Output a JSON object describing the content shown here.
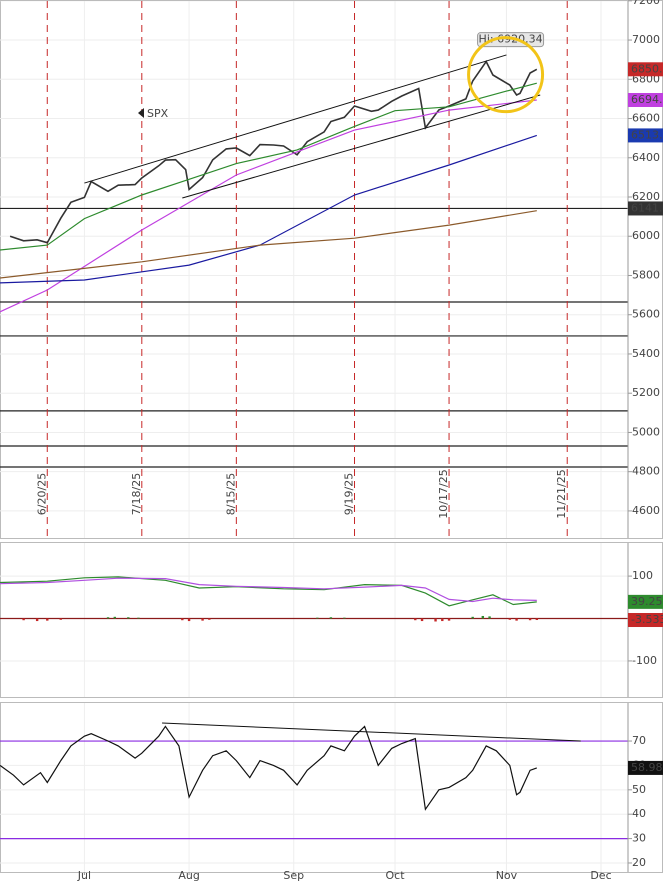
{
  "chart_data": [
    {
      "type": "line",
      "xlim": [
        "2025-06-06",
        "2025-12-09"
      ],
      "ylim": [
        4462,
        7199
      ],
      "yticks": [
        4600,
        4800,
        5000,
        5200,
        5400,
        5600,
        5800,
        6000,
        6200,
        6400,
        6600,
        6800,
        7000,
        7200
      ],
      "grid": true,
      "series": [
        {
          "name": "SPX",
          "color": "#333333",
          "x": [
            "2025-06-09",
            "2025-06-13",
            "2025-06-17",
            "2025-06-20",
            "2025-06-24",
            "2025-06-27",
            "2025-07-01",
            "2025-07-03",
            "2025-07-08",
            "2025-07-11",
            "2025-07-16",
            "2025-07-18",
            "2025-07-23",
            "2025-07-25",
            "2025-07-28",
            "2025-07-31",
            "2025-08-01",
            "2025-08-05",
            "2025-08-08",
            "2025-08-12",
            "2025-08-15",
            "2025-08-19",
            "2025-08-22",
            "2025-08-26",
            "2025-08-29",
            "2025-09-02",
            "2025-09-05",
            "2025-09-10",
            "2025-09-12",
            "2025-09-16",
            "2025-09-19",
            "2025-09-24",
            "2025-09-26",
            "2025-09-30",
            "2025-10-03",
            "2025-10-08",
            "2025-10-10",
            "2025-10-14",
            "2025-10-17",
            "2025-10-22",
            "2025-10-24",
            "2025-10-28",
            "2025-10-30",
            "2025-11-04",
            "2025-11-06",
            "2025-11-07",
            "2025-11-10",
            "2025-11-12"
          ],
          "values": [
            6000,
            5977,
            5982,
            5967,
            6092,
            6173,
            6198,
            6279,
            6229,
            6260,
            6263,
            6297,
            6359,
            6388,
            6390,
            6339,
            6238,
            6299,
            6389,
            6445,
            6450,
            6411,
            6467,
            6465,
            6460,
            6415,
            6482,
            6532,
            6585,
            6606,
            6664,
            6637,
            6643,
            6688,
            6715,
            6753,
            6552,
            6644,
            6664,
            6700,
            6791,
            6890,
            6822,
            6771,
            6720,
            6728,
            6832,
            6850.9
          ]
        },
        {
          "color": "#2e8b2e",
          "x": [
            "2025-06-06",
            "2025-06-20",
            "2025-07-01",
            "2025-07-18",
            "2025-08-01",
            "2025-08-15",
            "2025-09-02",
            "2025-09-19",
            "2025-10-01",
            "2025-10-17",
            "2025-11-03",
            "2025-11-12"
          ],
          "values": [
            5930,
            5955,
            6090,
            6210,
            6290,
            6370,
            6440,
            6560,
            6640,
            6660,
            6740,
            6780
          ]
        },
        {
          "color": "#c040e0",
          "x": [
            "2025-06-06",
            "2025-06-20",
            "2025-07-18",
            "2025-08-15",
            "2025-09-19",
            "2025-10-17",
            "2025-11-12"
          ],
          "values": [
            5615,
            5726,
            6032,
            6312,
            6541,
            6643,
            6694.4
          ]
        },
        {
          "color": "#1a1aa0",
          "x": [
            "2025-06-06",
            "2025-07-01",
            "2025-08-01",
            "2025-08-22",
            "2025-09-19",
            "2025-10-17",
            "2025-11-12"
          ],
          "values": [
            5762,
            5777,
            5853,
            5955,
            6210,
            6363,
            6513.9
          ]
        },
        {
          "color": "#8b5a2b",
          "x": [
            "2025-06-06",
            "2025-07-18",
            "2025-08-22",
            "2025-09-19",
            "2025-10-17",
            "2025-11-12"
          ],
          "values": [
            5787,
            5870,
            5955,
            5990,
            6057,
            6130
          ]
        }
      ],
      "hlines": [
        6141.6,
        5665,
        5492,
        5110,
        4931,
        4824
      ],
      "hline_color": "#222222",
      "trendlines": [
        {
          "x": [
            "2025-07-01",
            "2025-11-03"
          ],
          "values": [
            6271,
            6924
          ]
        },
        {
          "x": [
            "2025-07-30",
            "2025-11-13"
          ],
          "values": [
            6195,
            6720
          ]
        }
      ],
      "vlines": [
        {
          "value": "2025-06-20",
          "label": "6/20/25"
        },
        {
          "value": "2025-07-18",
          "label": "7/18/25"
        },
        {
          "value": "2025-08-15",
          "label": "8/15/25"
        },
        {
          "value": "2025-09-19",
          "label": "9/19/25"
        },
        {
          "value": "2025-10-17",
          "label": "10/17/25"
        },
        {
          "value": "2025-11-21",
          "label": "11/21/25"
        }
      ],
      "vline_color": "#c62828",
      "hi": {
        "x": "2025-10-29",
        "value": 6920.34,
        "label": "Hi: 6920.34"
      },
      "tags": [
        {
          "value": 6850.9,
          "color": "#c62828"
        },
        {
          "value": 6694.4,
          "color": "#c040e0"
        },
        {
          "value": 6513.9,
          "color": "#1a3ab0"
        },
        {
          "value": 6141.6,
          "color": "#333333"
        }
      ]
    },
    {
      "type": "line",
      "xlim": [
        "2025-06-06",
        "2025-12-09"
      ],
      "ylim": [
        -185,
        178
      ],
      "yticks": [
        -100,
        100
      ],
      "grid": true,
      "series": [
        {
          "color": "#2e8b2e",
          "x": [
            "2025-06-06",
            "2025-06-20",
            "2025-07-01",
            "2025-07-11",
            "2025-07-25",
            "2025-08-04",
            "2025-08-15",
            "2025-08-29",
            "2025-09-10",
            "2025-09-22",
            "2025-10-03",
            "2025-10-10",
            "2025-10-17",
            "2025-10-24",
            "2025-10-30",
            "2025-11-05",
            "2025-11-12"
          ],
          "values": [
            85,
            88,
            96,
            98,
            90,
            72,
            75,
            70,
            68,
            80,
            78,
            60,
            30,
            44,
            56,
            33,
            39.25
          ]
        },
        {
          "color": "#b050e0",
          "x": [
            "2025-06-06",
            "2025-06-20",
            "2025-07-01",
            "2025-07-11",
            "2025-07-25",
            "2025-08-04",
            "2025-08-15",
            "2025-08-29",
            "2025-09-10",
            "2025-09-22",
            "2025-10-03",
            "2025-10-10",
            "2025-10-17",
            "2025-10-24",
            "2025-10-30",
            "2025-11-05",
            "2025-11-12"
          ],
          "values": [
            82,
            85,
            90,
            95,
            94,
            80,
            76,
            73,
            70,
            74,
            78,
            72,
            45,
            40,
            48,
            44,
            42.78
          ]
        },
        {
          "style": "histogram",
          "color": "#c62828",
          "up_color": "#2e8b2e",
          "x": [
            "2025-06-13",
            "2025-06-17",
            "2025-06-20",
            "2025-06-24",
            "2025-07-08",
            "2025-07-10",
            "2025-07-14",
            "2025-07-17",
            "2025-07-30",
            "2025-08-01",
            "2025-08-05",
            "2025-08-07",
            "2025-09-08",
            "2025-09-12",
            "2025-09-16",
            "2025-10-07",
            "2025-10-09",
            "2025-10-13",
            "2025-10-15",
            "2025-10-17",
            "2025-10-24",
            "2025-10-27",
            "2025-10-29",
            "2025-11-04",
            "2025-11-06",
            "2025-11-10",
            "2025-11-12"
          ],
          "values": [
            -4,
            -6,
            -5,
            -3,
            3,
            4,
            3,
            2,
            -4,
            -6,
            -5,
            -3,
            2,
            3,
            2,
            -4,
            -6,
            -7,
            -6,
            -5,
            4,
            6,
            5,
            -3,
            -5,
            -4,
            -3.533
          ]
        }
      ],
      "hlines": [
        0
      ],
      "hline_color": "#8b1a1a",
      "tags": [
        {
          "value": 39.25,
          "label": "39.250",
          "color": "#2e8b2e"
        },
        {
          "value": -3.533,
          "color": "#c62828"
        }
      ]
    },
    {
      "type": "line",
      "xlim": [
        "2025-06-06",
        "2025-12-09"
      ],
      "ylim": [
        16.3,
        85.6
      ],
      "yticks": [
        20,
        30,
        40,
        50,
        60,
        70
      ],
      "xticks": [
        {
          "value": "2025-07-01",
          "label": "Jul"
        },
        {
          "value": "2025-08-01",
          "label": "Aug"
        },
        {
          "value": "2025-09-01",
          "label": "Sep"
        },
        {
          "value": "2025-10-01",
          "label": "Oct"
        },
        {
          "value": "2025-11-03",
          "label": "Nov"
        },
        {
          "value": "2025-12-01",
          "label": "Dec"
        }
      ],
      "grid": true,
      "series": [
        {
          "color": "#111111",
          "x": [
            "2025-06-06",
            "2025-06-10",
            "2025-06-13",
            "2025-06-18",
            "2025-06-20",
            "2025-06-24",
            "2025-06-27",
            "2025-07-01",
            "2025-07-03",
            "2025-07-08",
            "2025-07-11",
            "2025-07-16",
            "2025-07-18",
            "2025-07-23",
            "2025-07-25",
            "2025-07-29",
            "2025-08-01",
            "2025-08-05",
            "2025-08-08",
            "2025-08-12",
            "2025-08-15",
            "2025-08-19",
            "2025-08-22",
            "2025-08-26",
            "2025-08-29",
            "2025-09-02",
            "2025-09-05",
            "2025-09-10",
            "2025-09-12",
            "2025-09-16",
            "2025-09-19",
            "2025-09-22",
            "2025-09-26",
            "2025-09-30",
            "2025-10-03",
            "2025-10-07",
            "2025-10-10",
            "2025-10-14",
            "2025-10-17",
            "2025-10-22",
            "2025-10-24",
            "2025-10-28",
            "2025-10-31",
            "2025-11-04",
            "2025-11-06",
            "2025-11-07",
            "2025-11-10",
            "2025-11-12"
          ],
          "values": [
            60,
            56,
            52,
            57,
            53,
            62,
            68,
            72,
            73,
            70,
            68,
            63,
            65,
            72,
            76,
            68,
            47,
            58,
            64,
            66,
            62,
            55,
            62,
            60,
            58,
            52,
            58,
            64,
            68,
            66,
            72,
            76,
            60,
            67,
            69,
            71,
            42,
            50,
            51,
            55,
            58,
            68,
            66,
            60,
            48,
            49,
            58,
            58.98
          ]
        }
      ],
      "hlines": [
        70,
        30
      ],
      "hline_color": "#8a2be2",
      "trendlines": [
        {
          "x": [
            "2025-07-24",
            "2025-11-25"
          ],
          "values": [
            77.4,
            70
          ]
        }
      ],
      "tags": [
        {
          "value": 58.98,
          "label": "58.980",
          "color": "#111111"
        }
      ]
    }
  ]
}
